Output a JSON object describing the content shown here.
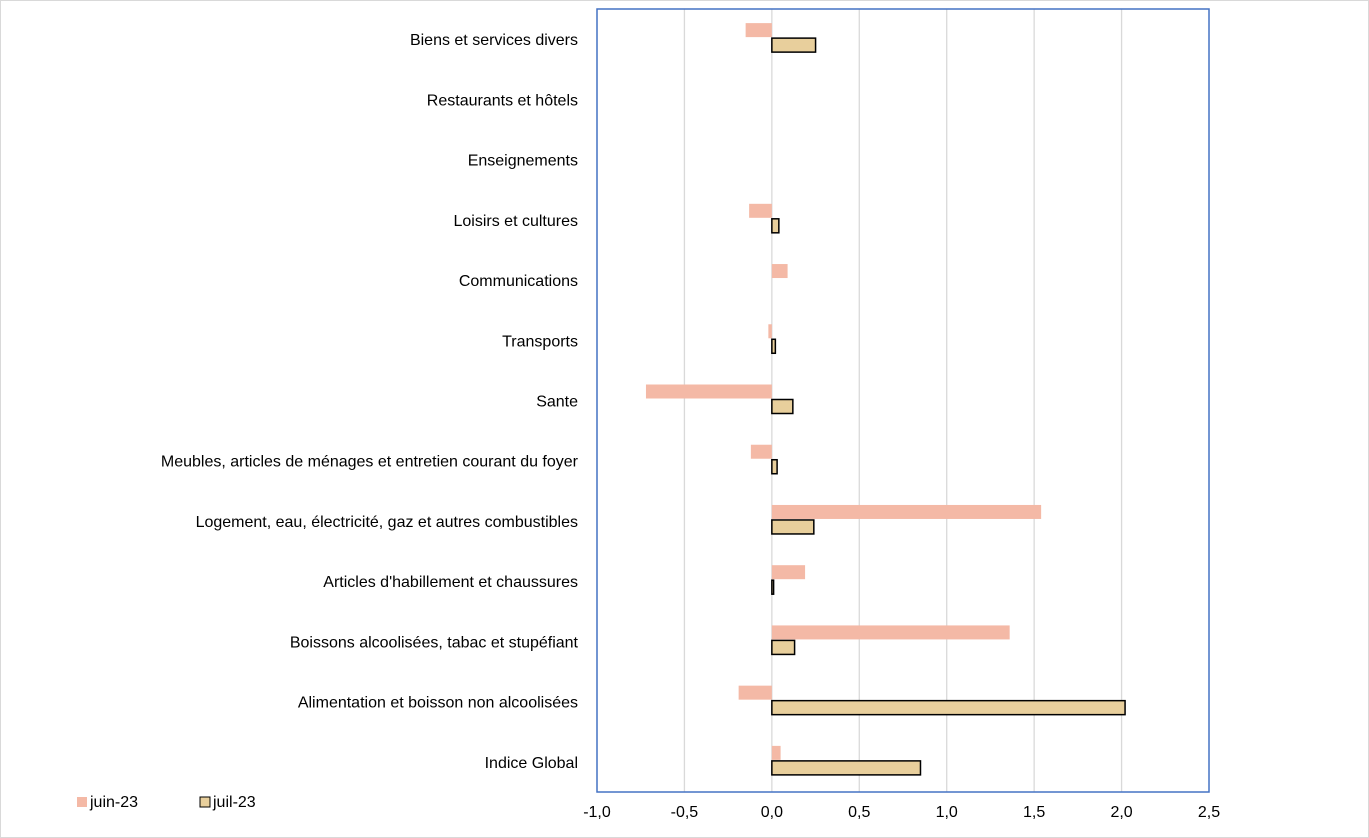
{
  "chart_data": {
    "type": "bar",
    "orientation": "horizontal",
    "categories": [
      "Biens et services divers",
      "Restaurants et hôtels",
      "Enseignements",
      "Loisirs et cultures",
      "Communications",
      "Transports",
      "Sante",
      "Meubles, articles de ménages et entretien courant du foyer",
      "Logement, eau, électricité, gaz et autres combustibles",
      "Articles d'habillement et chaussures",
      "Boissons alcoolisées, tabac et stupéfiant",
      "Alimentation et boisson non alcoolisées",
      "Indice Global"
    ],
    "series": [
      {
        "name": "juin-23",
        "color": "#f4b9a6",
        "values": [
          -0.15,
          0,
          0,
          -0.13,
          0.09,
          -0.02,
          -0.72,
          -0.12,
          1.54,
          0.19,
          1.36,
          -0.19,
          0.05
        ]
      },
      {
        "name": "juil-23",
        "color": "#e8cf9c",
        "values": [
          0.25,
          0,
          0,
          0.04,
          0,
          0.02,
          0.12,
          0.03,
          0.24,
          0.01,
          0.13,
          2.02,
          0.85
        ]
      }
    ],
    "xlim": [
      -1.0,
      2.5
    ],
    "xticks": [
      "-1,0",
      "-0,5",
      "0,0",
      "0,5",
      "1,0",
      "1,5",
      "2,0",
      "2,5"
    ],
    "grid": "vertical",
    "legend_position": "bottom-left",
    "title": "",
    "xlabel": "",
    "ylabel": ""
  }
}
